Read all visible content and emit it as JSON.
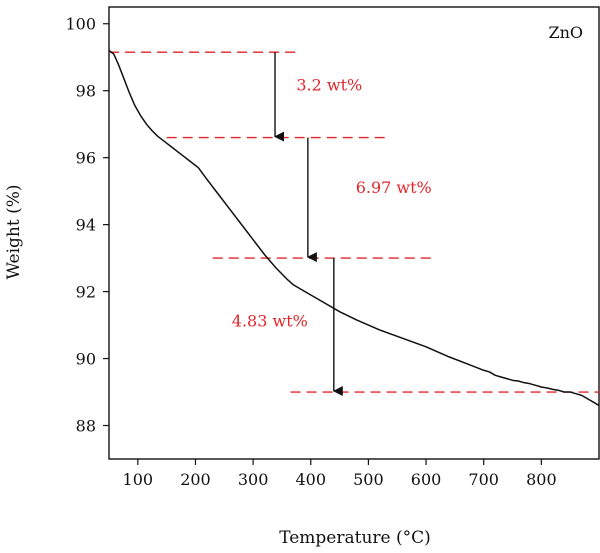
{
  "chart_data": {
    "type": "line",
    "title": "",
    "xlabel": "Temperature (°C)",
    "ylabel": "Weight (%)",
    "xlim": [
      50,
      900
    ],
    "ylim": [
      87,
      100.5
    ],
    "x_ticks": [
      100,
      200,
      300,
      400,
      500,
      600,
      700,
      800
    ],
    "y_ticks": [
      88,
      90,
      92,
      94,
      96,
      98,
      100
    ],
    "legend": {
      "label": "ZnO",
      "position": "top-right"
    },
    "grid": false,
    "series": [
      {
        "name": "ZnO",
        "color": "#111111",
        "x": [
          50,
          58,
          66,
          75,
          85,
          95,
          105,
          115,
          125,
          135,
          145,
          160,
          175,
          190,
          205,
          220,
          240,
          260,
          280,
          300,
          320,
          340,
          360,
          370,
          390,
          420,
          450,
          480,
          520,
          560,
          600,
          640,
          670,
          700,
          710,
          720,
          730,
          740,
          750,
          760,
          770,
          780,
          790,
          800,
          810,
          820,
          830,
          840,
          850,
          860,
          870,
          880,
          890,
          900
        ],
        "y": [
          99.2,
          99.1,
          98.8,
          98.4,
          97.95,
          97.55,
          97.25,
          97.0,
          96.8,
          96.63,
          96.5,
          96.3,
          96.1,
          95.9,
          95.7,
          95.35,
          94.9,
          94.45,
          94.0,
          93.55,
          93.1,
          92.7,
          92.35,
          92.2,
          92.0,
          91.7,
          91.4,
          91.15,
          90.85,
          90.6,
          90.35,
          90.05,
          89.85,
          89.65,
          89.6,
          89.5,
          89.45,
          89.4,
          89.35,
          89.33,
          89.28,
          89.25,
          89.2,
          89.15,
          89.12,
          89.08,
          89.05,
          89.0,
          89.0,
          88.95,
          88.9,
          88.8,
          88.7,
          88.6
        ]
      }
    ],
    "reference_lines": [
      {
        "y": 99.15,
        "x_start": 50,
        "x_end": 380
      },
      {
        "y": 96.6,
        "x_start": 150,
        "x_end": 530
      },
      {
        "y": 93.0,
        "x_start": 230,
        "x_end": 610
      },
      {
        "y": 89.0,
        "x_start": 365,
        "x_end": 900
      }
    ],
    "arrows": [
      {
        "x": 338,
        "y_start": 99.15,
        "y_end": 96.6
      },
      {
        "x": 395,
        "y_start": 96.6,
        "y_end": 93.0
      },
      {
        "x": 440,
        "y_start": 93.0,
        "y_end": 89.0
      }
    ],
    "annotations": [
      {
        "text": "3.2 wt%",
        "x": 375,
        "y": 98.0
      },
      {
        "text": "6.97 wt%",
        "x": 478,
        "y": 94.95
      },
      {
        "text": "4.83 wt%",
        "x": 263,
        "y": 90.95
      }
    ],
    "annotation_color": "#e0262a"
  }
}
